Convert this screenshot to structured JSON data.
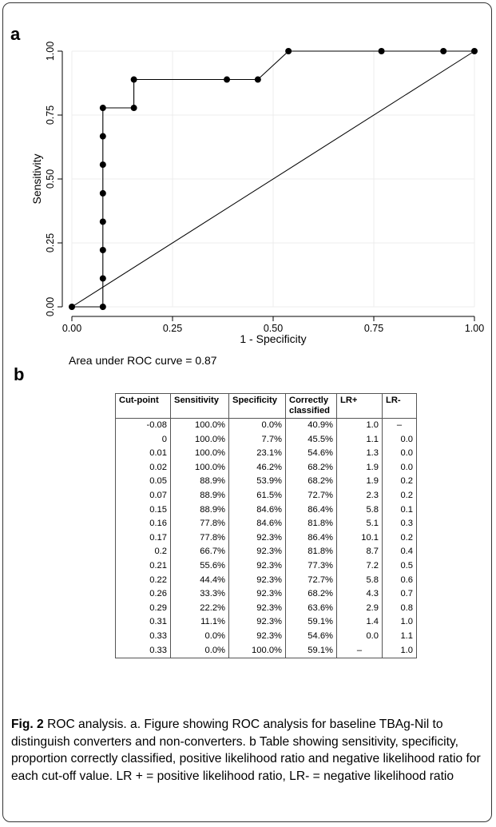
{
  "panel_a_label": "a",
  "panel_b_label": "b",
  "auc_text": "Area under ROC curve = 0.87",
  "chart_data": {
    "type": "line",
    "xlabel": "1 - Specificity",
    "ylabel": "Sensitivity",
    "xlim": [
      0,
      1
    ],
    "ylim": [
      0,
      1
    ],
    "x_ticks": [
      "0.00",
      "0.25",
      "0.50",
      "0.75",
      "1.00"
    ],
    "y_ticks": [
      "0.00",
      "0.25",
      "0.50",
      "0.75",
      "1.00"
    ],
    "grid": true,
    "series": [
      {
        "points": [
          [
            0.0,
            0.0
          ],
          [
            0.077,
            0.0
          ],
          [
            0.077,
            0.111
          ],
          [
            0.077,
            0.222
          ],
          [
            0.077,
            0.333
          ],
          [
            0.077,
            0.444
          ],
          [
            0.077,
            0.556
          ],
          [
            0.077,
            0.667
          ],
          [
            0.077,
            0.778
          ],
          [
            0.154,
            0.778
          ],
          [
            0.154,
            0.889
          ],
          [
            0.385,
            0.889
          ],
          [
            0.462,
            0.889
          ],
          [
            0.538,
            1.0
          ],
          [
            0.769,
            1.0
          ],
          [
            0.923,
            1.0
          ],
          [
            1.0,
            1.0
          ]
        ]
      }
    ],
    "reference_line": [
      [
        0,
        0
      ],
      [
        1,
        1
      ]
    ]
  },
  "table": {
    "headers": [
      "Cut-point",
      "Sensitivity",
      "Specificity",
      "Correctly classified",
      "LR+",
      "LR-"
    ],
    "rows": [
      [
        "-0.08",
        "100.0%",
        "0.0%",
        "40.9%",
        "1.0",
        "–"
      ],
      [
        "0",
        "100.0%",
        "7.7%",
        "45.5%",
        "1.1",
        "0.0"
      ],
      [
        "0.01",
        "100.0%",
        "23.1%",
        "54.6%",
        "1.3",
        "0.0"
      ],
      [
        "0.02",
        "100.0%",
        "46.2%",
        "68.2%",
        "1.9",
        "0.0"
      ],
      [
        "0.05",
        "88.9%",
        "53.9%",
        "68.2%",
        "1.9",
        "0.2"
      ],
      [
        "0.07",
        "88.9%",
        "61.5%",
        "72.7%",
        "2.3",
        "0.2"
      ],
      [
        "0.15",
        "88.9%",
        "84.6%",
        "86.4%",
        "5.8",
        "0.1"
      ],
      [
        "0.16",
        "77.8%",
        "84.6%",
        "81.8%",
        "5.1",
        "0.3"
      ],
      [
        "0.17",
        "77.8%",
        "92.3%",
        "86.4%",
        "10.1",
        "0.2"
      ],
      [
        "0.2",
        "66.7%",
        "92.3%",
        "81.8%",
        "8.7",
        "0.4"
      ],
      [
        "0.21",
        "55.6%",
        "92.3%",
        "77.3%",
        "7.2",
        "0.5"
      ],
      [
        "0.22",
        "44.4%",
        "92.3%",
        "72.7%",
        "5.8",
        "0.6"
      ],
      [
        "0.26",
        "33.3%",
        "92.3%",
        "68.2%",
        "4.3",
        "0.7"
      ],
      [
        "0.29",
        "22.2%",
        "92.3%",
        "63.6%",
        "2.9",
        "0.8"
      ],
      [
        "0.31",
        "11.1%",
        "92.3%",
        "59.1%",
        "1.4",
        "1.0"
      ],
      [
        "0.33",
        "0.0%",
        "92.3%",
        "54.6%",
        "0.0",
        "1.1"
      ],
      [
        "0.33",
        "0.0%",
        "100.0%",
        "59.1%",
        "–",
        "1.0"
      ]
    ]
  },
  "caption": {
    "label": "Fig. 2",
    "text": " ROC analysis. a. Figure showing ROC analysis for baseline TBAg-Nil to distinguish converters and non-converters. b Table showing sensitivity, specificity, proportion correctly classified, positive likelihood ratio and negative likelihood ratio for each cut-off value. LR + = positive likelihood ratio, LR- = negative likelihood ratio"
  }
}
